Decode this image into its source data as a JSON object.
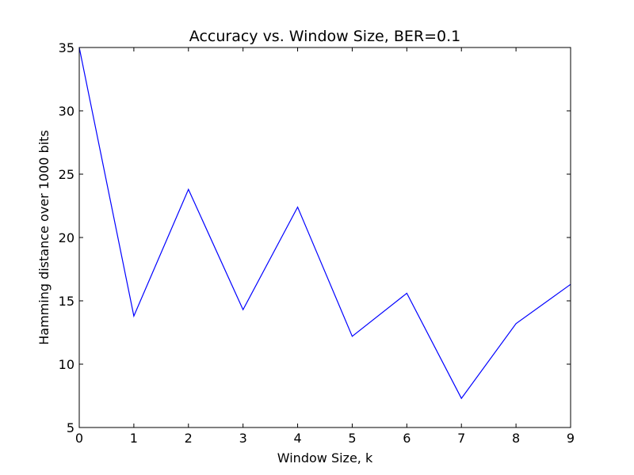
{
  "chart_data": {
    "type": "line",
    "title": "Accuracy vs. Window Size, BER=0.1",
    "xlabel": "Window Size, k",
    "ylabel": "Hamming distance over 1000 bits",
    "xlim": [
      0,
      9
    ],
    "ylim": [
      5,
      35
    ],
    "xticks": [
      0,
      1,
      2,
      3,
      4,
      5,
      6,
      7,
      8,
      9
    ],
    "yticks": [
      5,
      10,
      15,
      20,
      25,
      30,
      35
    ],
    "grid": false,
    "series": [
      {
        "color": "#0000ff",
        "x": [
          0,
          1,
          2,
          3,
          4,
          5,
          6,
          7,
          8,
          9
        ],
        "y": [
          35.0,
          13.8,
          23.8,
          14.3,
          22.4,
          12.2,
          15.6,
          7.3,
          13.2,
          16.3
        ]
      }
    ]
  }
}
